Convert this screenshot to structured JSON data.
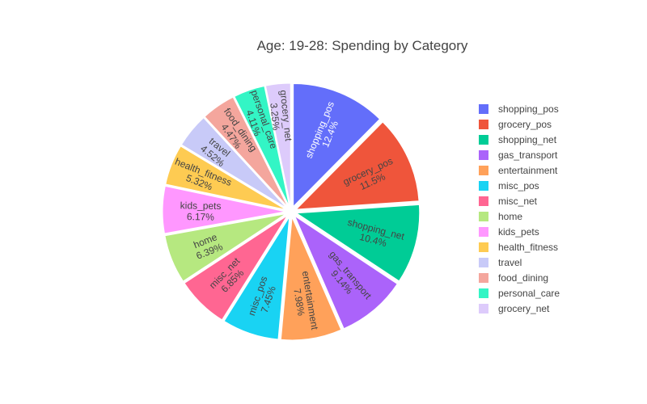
{
  "chart_data": {
    "type": "pie",
    "title": "Age: 19-28: Spending by Category",
    "legend_position": "right",
    "slices": [
      {
        "name": "shopping_pos",
        "label": "shopping_pos",
        "percent_text": "12.4%",
        "value": 12.4,
        "color": "#636efa",
        "text_color": "#ffffff"
      },
      {
        "name": "grocery_pos",
        "label": "grocery_pos",
        "percent_text": "11.5%",
        "value": 11.5,
        "color": "#ef553b",
        "text_color": "#444444"
      },
      {
        "name": "shopping_net",
        "label": "shopping_net",
        "percent_text": "10.4%",
        "value": 10.4,
        "color": "#00cc96",
        "text_color": "#444444"
      },
      {
        "name": "gas_transport",
        "label": "gas_transport",
        "percent_text": "9.14%",
        "value": 9.14,
        "color": "#ab63fa",
        "text_color": "#444444"
      },
      {
        "name": "entertainment",
        "label": "entertainment",
        "percent_text": "7.98%",
        "value": 7.98,
        "color": "#ffa15a",
        "text_color": "#444444"
      },
      {
        "name": "misc_pos",
        "label": "misc_pos",
        "percent_text": "7.45%",
        "value": 7.45,
        "color": "#19d3f3",
        "text_color": "#444444"
      },
      {
        "name": "misc_net",
        "label": "misc_net",
        "percent_text": "6.85%",
        "value": 6.85,
        "color": "#ff6692",
        "text_color": "#444444"
      },
      {
        "name": "home",
        "label": "home",
        "percent_text": "6.39%",
        "value": 6.39,
        "color": "#b6e880",
        "text_color": "#444444"
      },
      {
        "name": "kids_pets",
        "label": "kids_pets",
        "percent_text": "6.17%",
        "value": 6.17,
        "color": "#ff97ff",
        "text_color": "#444444"
      },
      {
        "name": "health_fitness",
        "label": "health_fitness",
        "percent_text": "5.32%",
        "value": 5.32,
        "color": "#fecb52",
        "text_color": "#444444"
      },
      {
        "name": "travel",
        "label": "travel",
        "percent_text": "4.52%",
        "value": 4.52,
        "color": "#c8caf8",
        "text_color": "#444444"
      },
      {
        "name": "food_dining",
        "label": "food_dining",
        "percent_text": "4.47%",
        "value": 4.47,
        "color": "#f4a69d",
        "text_color": "#444444"
      },
      {
        "name": "personal_care",
        "label": "personal_care",
        "percent_text": "4.11%",
        "value": 4.11,
        "color": "#33f5c5",
        "text_color": "#444444"
      },
      {
        "name": "grocery_net",
        "label": "grocery_net",
        "percent_text": "3.25%",
        "value": 3.25,
        "color": "#ddcbfb",
        "text_color": "#444444"
      }
    ]
  }
}
